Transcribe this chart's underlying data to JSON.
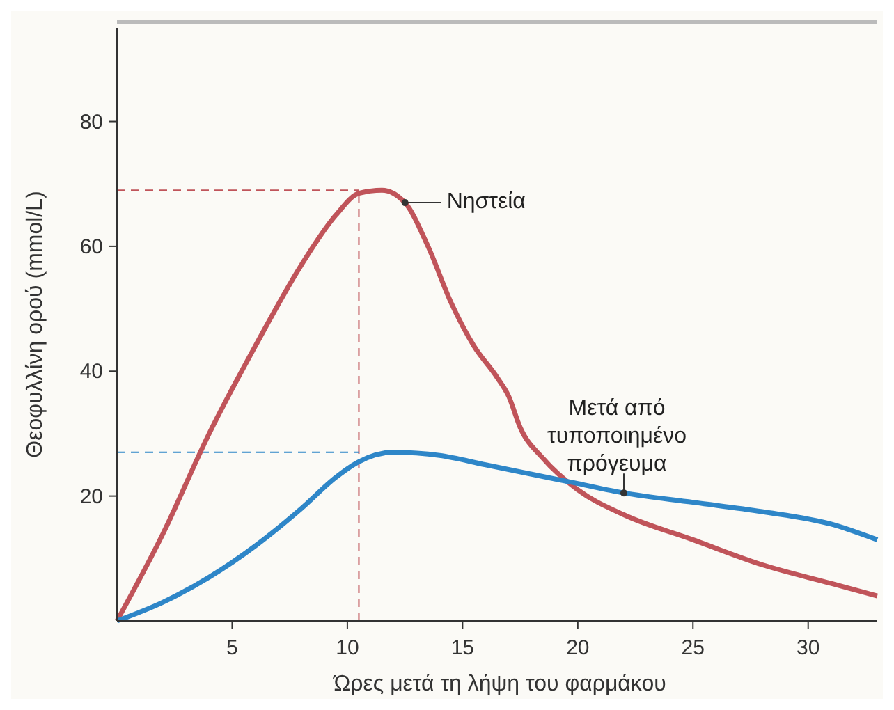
{
  "chart_data": {
    "type": "line",
    "xlabel": "Ώρες μετά τη λήψη του φαρμάκου",
    "ylabel": "Θεοφυλλίνη ορού (mmol/L)",
    "xlim": [
      0,
      33
    ],
    "ylim": [
      0,
      95
    ],
    "xticks": [
      5,
      10,
      15,
      20,
      25,
      30
    ],
    "yticks": [
      20,
      40,
      60,
      80
    ],
    "grid": false,
    "legend": "right",
    "marker": "none",
    "line_style": "solid",
    "series": [
      {
        "name": "Νηστεία",
        "color": "#c0545a",
        "x": [
          0,
          2,
          4,
          6,
          8,
          9.5,
          10.5,
          11.5,
          12.5,
          13.5,
          14.5,
          15.5,
          16.5,
          17,
          17.5,
          18.5,
          20,
          22,
          25,
          28,
          31,
          33
        ],
        "values": [
          0,
          14,
          30,
          44,
          57,
          65,
          68.5,
          69,
          67,
          60,
          51,
          44,
          39,
          36,
          31,
          26,
          21,
          17,
          13,
          9,
          6,
          4
        ]
      },
      {
        "name": "Μετά από\nτυποποιημένο\nπρόγευμα",
        "color": "#2e86c8",
        "x": [
          0,
          2,
          4,
          6,
          8,
          9.5,
          10.5,
          12,
          14,
          16,
          18,
          20,
          22,
          25,
          28,
          31,
          33
        ],
        "values": [
          0,
          3,
          7,
          12,
          18,
          23,
          25.5,
          27,
          26.5,
          25,
          23.5,
          22,
          20.5,
          19,
          17.5,
          15.5,
          13
        ]
      }
    ],
    "ref_lines": [
      {
        "axis": "y",
        "value": 69,
        "color": "#c0545a",
        "line_style": "dashed"
      },
      {
        "axis": "x",
        "value": 10.5,
        "color": "#c0545a",
        "line_style": "dashed"
      },
      {
        "axis": "y",
        "value": 27,
        "color": "#2e86c8",
        "line_style": "dashed"
      }
    ]
  }
}
